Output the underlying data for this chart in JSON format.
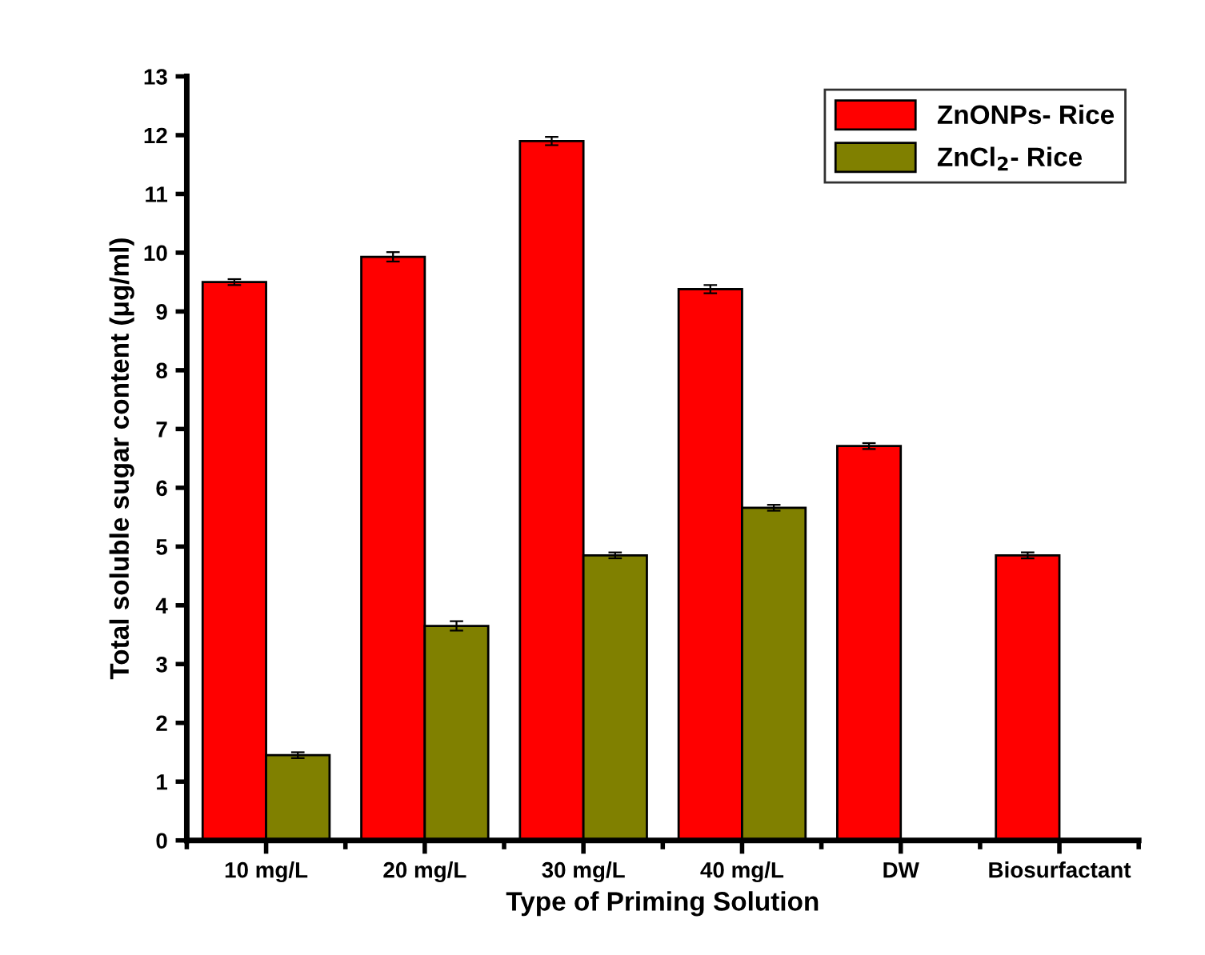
{
  "chart_data": {
    "type": "bar",
    "xlabel": "Type of Priming Solution",
    "ylabel": "Total soluble sugar content (μg/ml)",
    "categories": [
      "10 mg/L",
      "20 mg/L",
      "30 mg/L",
      "40 mg/L",
      "DW",
      "Biosurfactant"
    ],
    "series": [
      {
        "name": "ZnONPs- Rice",
        "color": "#ff0000",
        "values": [
          9.5,
          9.93,
          11.9,
          9.38,
          6.71,
          4.85
        ],
        "errors": [
          0.05,
          0.08,
          0.07,
          0.07,
          0.05,
          0.05
        ]
      },
      {
        "name": "ZnCl$_{2}$- Rice",
        "color": "#808000",
        "values": [
          1.45,
          3.65,
          4.85,
          5.66,
          null,
          null
        ],
        "errors": [
          0.05,
          0.08,
          0.05,
          0.05,
          null,
          null
        ]
      }
    ],
    "ylim": [
      0,
      13
    ],
    "yticks": [
      0,
      1,
      2,
      3,
      4,
      5,
      6,
      7,
      8,
      9,
      10,
      11,
      12,
      13
    ],
    "grid": false,
    "legend": "top right"
  }
}
